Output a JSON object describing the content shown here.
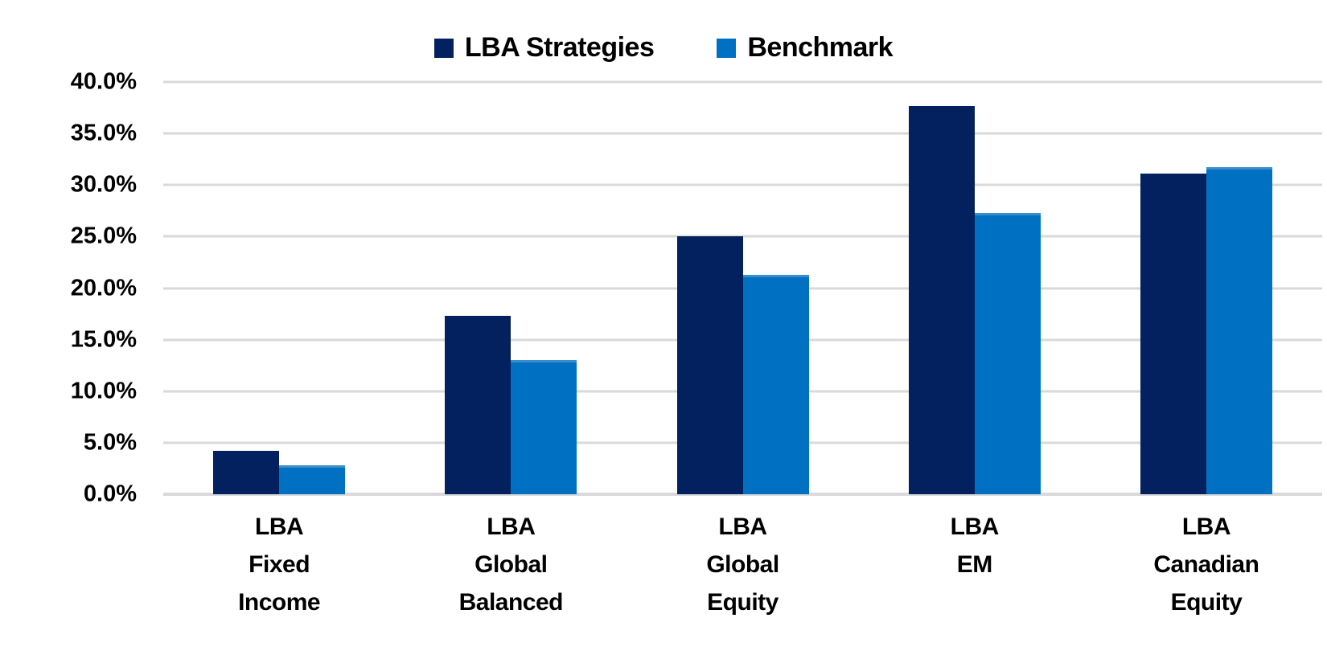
{
  "chart_data": {
    "type": "bar",
    "title": "",
    "categories": [
      [
        "LBA",
        "Fixed",
        "Income"
      ],
      [
        "LBA",
        "Global",
        "Balanced"
      ],
      [
        "LBA",
        "Global",
        "Equity"
      ],
      [
        "LBA",
        "EM"
      ],
      [
        "LBA",
        "Canadian",
        "Equity"
      ]
    ],
    "series": [
      {
        "name": "LBA Strategies",
        "color": "#02215E",
        "values": [
          4.2,
          17.3,
          25.0,
          37.7,
          31.1
        ]
      },
      {
        "name": "Benchmark",
        "color": "#0071C2",
        "values": [
          2.8,
          13.0,
          21.3,
          27.3,
          31.7
        ]
      }
    ],
    "ylim": [
      0,
      40
    ],
    "ytick_step": 5,
    "yticks": [
      "40.0%",
      "35.0%",
      "30.0%",
      "25.0%",
      "20.0%",
      "15.0%",
      "10.0%",
      "5.0%",
      "0.0%"
    ],
    "grid": true,
    "gridline_color": "#D9D9D9",
    "legend_position": "top"
  },
  "legend": {
    "items": [
      {
        "label": "LBA Strategies",
        "color": "#02215E"
      },
      {
        "label": "Benchmark",
        "color": "#0071C2"
      }
    ]
  }
}
